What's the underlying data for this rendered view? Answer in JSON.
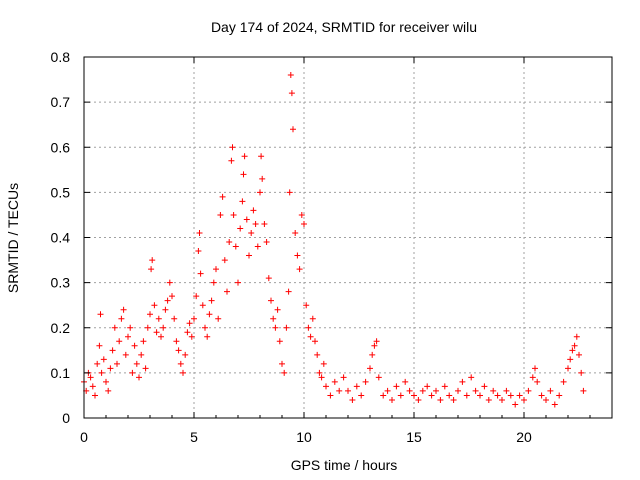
{
  "chart_data": {
    "type": "scatter",
    "title": "Day 174 of 2024, SRMTID for receiver wilu",
    "xlabel": "GPS time / hours",
    "ylabel": "SRMTID / TECUs",
    "xlim": [
      0,
      24
    ],
    "ylim": [
      0,
      0.8
    ],
    "x_ticks": [
      0,
      5,
      10,
      15,
      20
    ],
    "x_tick_labels": [
      "0",
      "5",
      "10",
      "15",
      "20"
    ],
    "y_ticks": [
      0,
      0.1,
      0.2,
      0.3,
      0.4,
      0.5,
      0.6,
      0.7,
      0.8
    ],
    "y_tick_labels": [
      "0",
      "0.1",
      "0.2",
      "0.3",
      "0.4",
      "0.5",
      "0.6",
      "0.7",
      "0.8"
    ],
    "grid": true,
    "marker": "+",
    "color": "#ff0000",
    "series": [
      {
        "name": "SRMTID",
        "points": [
          [
            0.0,
            0.08
          ],
          [
            0.1,
            0.06
          ],
          [
            0.2,
            0.1
          ],
          [
            0.3,
            0.09
          ],
          [
            0.4,
            0.07
          ],
          [
            0.5,
            0.05
          ],
          [
            0.6,
            0.12
          ],
          [
            0.7,
            0.16
          ],
          [
            0.75,
            0.23
          ],
          [
            0.8,
            0.1
          ],
          [
            0.9,
            0.13
          ],
          [
            1.0,
            0.08
          ],
          [
            1.1,
            0.06
          ],
          [
            1.2,
            0.11
          ],
          [
            1.3,
            0.15
          ],
          [
            1.4,
            0.2
          ],
          [
            1.5,
            0.12
          ],
          [
            1.6,
            0.17
          ],
          [
            1.7,
            0.22
          ],
          [
            1.8,
            0.24
          ],
          [
            1.9,
            0.14
          ],
          [
            2.0,
            0.18
          ],
          [
            2.1,
            0.2
          ],
          [
            2.2,
            0.1
          ],
          [
            2.3,
            0.16
          ],
          [
            2.4,
            0.12
          ],
          [
            2.5,
            0.09
          ],
          [
            2.6,
            0.14
          ],
          [
            2.7,
            0.17
          ],
          [
            2.8,
            0.11
          ],
          [
            2.9,
            0.2
          ],
          [
            3.0,
            0.23
          ],
          [
            3.05,
            0.33
          ],
          [
            3.1,
            0.35
          ],
          [
            3.2,
            0.25
          ],
          [
            3.3,
            0.19
          ],
          [
            3.4,
            0.22
          ],
          [
            3.5,
            0.18
          ],
          [
            3.6,
            0.2
          ],
          [
            3.7,
            0.24
          ],
          [
            3.8,
            0.26
          ],
          [
            3.9,
            0.3
          ],
          [
            4.0,
            0.27
          ],
          [
            4.1,
            0.22
          ],
          [
            4.2,
            0.17
          ],
          [
            4.3,
            0.15
          ],
          [
            4.4,
            0.12
          ],
          [
            4.5,
            0.1
          ],
          [
            4.6,
            0.14
          ],
          [
            4.7,
            0.19
          ],
          [
            4.8,
            0.21
          ],
          [
            4.9,
            0.18
          ],
          [
            5.0,
            0.22
          ],
          [
            5.1,
            0.27
          ],
          [
            5.2,
            0.37
          ],
          [
            5.25,
            0.41
          ],
          [
            5.3,
            0.32
          ],
          [
            5.4,
            0.25
          ],
          [
            5.5,
            0.2
          ],
          [
            5.6,
            0.18
          ],
          [
            5.7,
            0.23
          ],
          [
            5.8,
            0.26
          ],
          [
            5.9,
            0.3
          ],
          [
            6.0,
            0.33
          ],
          [
            6.1,
            0.22
          ],
          [
            6.2,
            0.45
          ],
          [
            6.3,
            0.49
          ],
          [
            6.4,
            0.35
          ],
          [
            6.5,
            0.28
          ],
          [
            6.6,
            0.39
          ],
          [
            6.7,
            0.57
          ],
          [
            6.75,
            0.6
          ],
          [
            6.8,
            0.45
          ],
          [
            6.9,
            0.38
          ],
          [
            7.0,
            0.3
          ],
          [
            7.1,
            0.42
          ],
          [
            7.2,
            0.48
          ],
          [
            7.25,
            0.54
          ],
          [
            7.3,
            0.58
          ],
          [
            7.4,
            0.44
          ],
          [
            7.5,
            0.36
          ],
          [
            7.6,
            0.41
          ],
          [
            7.7,
            0.46
          ],
          [
            7.8,
            0.43
          ],
          [
            7.9,
            0.38
          ],
          [
            8.0,
            0.5
          ],
          [
            8.05,
            0.58
          ],
          [
            8.1,
            0.53
          ],
          [
            8.2,
            0.43
          ],
          [
            8.3,
            0.39
          ],
          [
            8.4,
            0.31
          ],
          [
            8.5,
            0.26
          ],
          [
            8.6,
            0.22
          ],
          [
            8.7,
            0.2
          ],
          [
            8.8,
            0.24
          ],
          [
            8.9,
            0.17
          ],
          [
            9.0,
            0.12
          ],
          [
            9.1,
            0.1
          ],
          [
            9.2,
            0.2
          ],
          [
            9.3,
            0.28
          ],
          [
            9.35,
            0.5
          ],
          [
            9.4,
            0.76
          ],
          [
            9.45,
            0.72
          ],
          [
            9.5,
            0.64
          ],
          [
            9.6,
            0.41
          ],
          [
            9.7,
            0.36
          ],
          [
            9.8,
            0.33
          ],
          [
            9.9,
            0.45
          ],
          [
            10.0,
            0.43
          ],
          [
            10.1,
            0.25
          ],
          [
            10.2,
            0.2
          ],
          [
            10.3,
            0.18
          ],
          [
            10.4,
            0.22
          ],
          [
            10.5,
            0.17
          ],
          [
            10.6,
            0.14
          ],
          [
            10.7,
            0.1
          ],
          [
            10.8,
            0.09
          ],
          [
            10.9,
            0.12
          ],
          [
            11.0,
            0.07
          ],
          [
            11.2,
            0.05
          ],
          [
            11.4,
            0.08
          ],
          [
            11.6,
            0.06
          ],
          [
            11.8,
            0.09
          ],
          [
            12.0,
            0.06
          ],
          [
            12.2,
            0.04
          ],
          [
            12.4,
            0.07
          ],
          [
            12.6,
            0.05
          ],
          [
            12.8,
            0.08
          ],
          [
            13.0,
            0.11
          ],
          [
            13.1,
            0.14
          ],
          [
            13.2,
            0.16
          ],
          [
            13.3,
            0.17
          ],
          [
            13.4,
            0.09
          ],
          [
            13.6,
            0.05
          ],
          [
            13.8,
            0.06
          ],
          [
            14.0,
            0.04
          ],
          [
            14.2,
            0.07
          ],
          [
            14.4,
            0.05
          ],
          [
            14.6,
            0.08
          ],
          [
            14.8,
            0.06
          ],
          [
            15.0,
            0.05
          ],
          [
            15.2,
            0.04
          ],
          [
            15.4,
            0.06
          ],
          [
            15.6,
            0.07
          ],
          [
            15.8,
            0.05
          ],
          [
            16.0,
            0.06
          ],
          [
            16.2,
            0.04
          ],
          [
            16.4,
            0.07
          ],
          [
            16.6,
            0.05
          ],
          [
            16.8,
            0.04
          ],
          [
            17.0,
            0.06
          ],
          [
            17.2,
            0.08
          ],
          [
            17.4,
            0.05
          ],
          [
            17.6,
            0.09
          ],
          [
            17.8,
            0.06
          ],
          [
            18.0,
            0.05
          ],
          [
            18.2,
            0.07
          ],
          [
            18.4,
            0.04
          ],
          [
            18.6,
            0.06
          ],
          [
            18.8,
            0.05
          ],
          [
            19.0,
            0.04
          ],
          [
            19.2,
            0.06
          ],
          [
            19.4,
            0.05
          ],
          [
            19.6,
            0.03
          ],
          [
            19.8,
            0.05
          ],
          [
            20.0,
            0.04
          ],
          [
            20.2,
            0.06
          ],
          [
            20.4,
            0.09
          ],
          [
            20.5,
            0.11
          ],
          [
            20.6,
            0.08
          ],
          [
            20.8,
            0.05
          ],
          [
            21.0,
            0.04
          ],
          [
            21.2,
            0.06
          ],
          [
            21.4,
            0.03
          ],
          [
            21.6,
            0.05
          ],
          [
            21.8,
            0.08
          ],
          [
            22.0,
            0.11
          ],
          [
            22.1,
            0.13
          ],
          [
            22.2,
            0.15
          ],
          [
            22.3,
            0.16
          ],
          [
            22.4,
            0.18
          ],
          [
            22.5,
            0.14
          ],
          [
            22.6,
            0.1
          ],
          [
            22.7,
            0.06
          ]
        ]
      }
    ]
  }
}
